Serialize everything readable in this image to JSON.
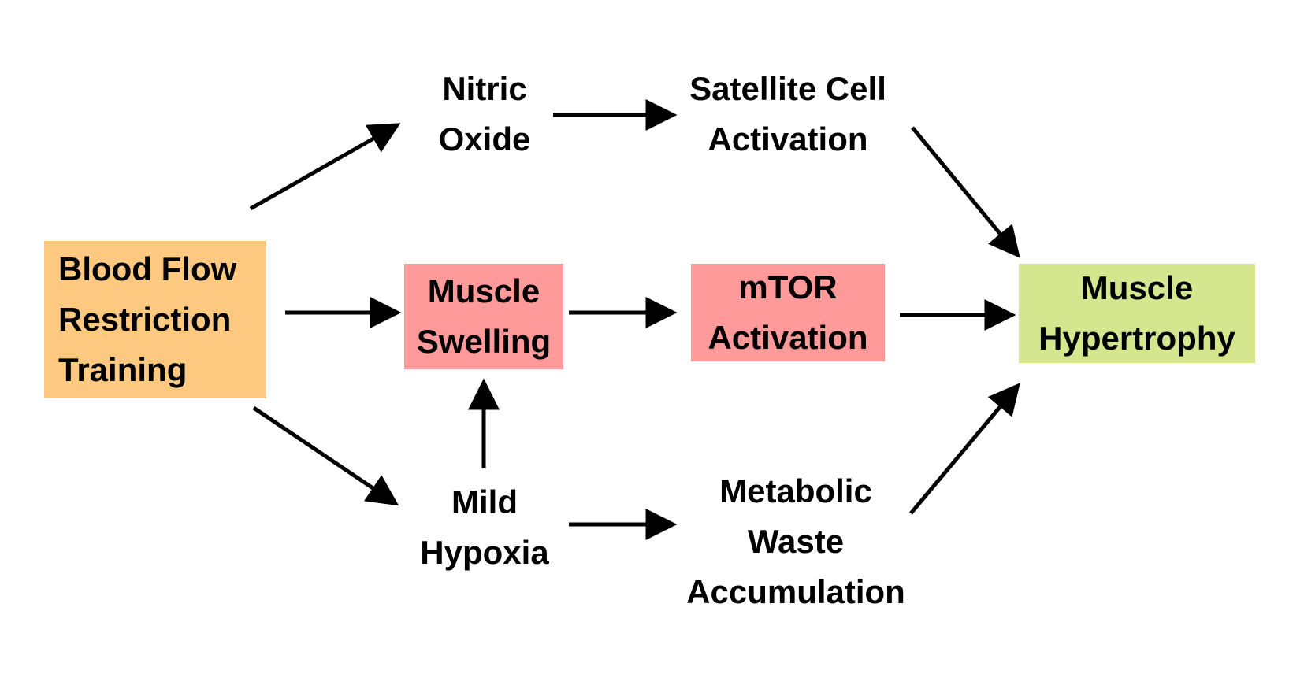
{
  "colors": {
    "bfr_fill": "#fdc981",
    "pink_fill": "#fe9a99",
    "green_fill": "#d6e68e",
    "arrow": "#000000",
    "text": "#000000"
  },
  "nodes": {
    "bfr": {
      "lines": [
        "Blood Flow",
        "Restriction",
        "Training"
      ]
    },
    "nitric_oxide": {
      "lines": [
        "Nitric",
        "Oxide"
      ]
    },
    "satellite": {
      "lines": [
        "Satellite Cell",
        "Activation"
      ]
    },
    "swelling": {
      "lines": [
        "Muscle",
        "Swelling"
      ]
    },
    "mtor": {
      "lines": [
        "mTOR",
        "Activation"
      ]
    },
    "hypertrophy": {
      "lines": [
        "Muscle",
        "Hypertrophy"
      ]
    },
    "hypoxia": {
      "lines": [
        "Mild",
        "Hypoxia"
      ]
    },
    "waste": {
      "lines": [
        "Metabolic",
        "Waste",
        "Accumulation"
      ]
    }
  },
  "edges": [
    {
      "from": "Blood Flow Restriction Training",
      "to": "Nitric Oxide"
    },
    {
      "from": "Blood Flow Restriction Training",
      "to": "Muscle Swelling"
    },
    {
      "from": "Blood Flow Restriction Training",
      "to": "Mild Hypoxia"
    },
    {
      "from": "Nitric Oxide",
      "to": "Satellite Cell Activation"
    },
    {
      "from": "Satellite Cell Activation",
      "to": "Muscle Hypertrophy"
    },
    {
      "from": "Muscle Swelling",
      "to": "mTOR Activation"
    },
    {
      "from": "mTOR Activation",
      "to": "Muscle Hypertrophy"
    },
    {
      "from": "Mild Hypoxia",
      "to": "Muscle Swelling"
    },
    {
      "from": "Mild Hypoxia",
      "to": "Metabolic Waste Accumulation"
    },
    {
      "from": "Metabolic Waste Accumulation",
      "to": "Muscle Hypertrophy"
    }
  ]
}
